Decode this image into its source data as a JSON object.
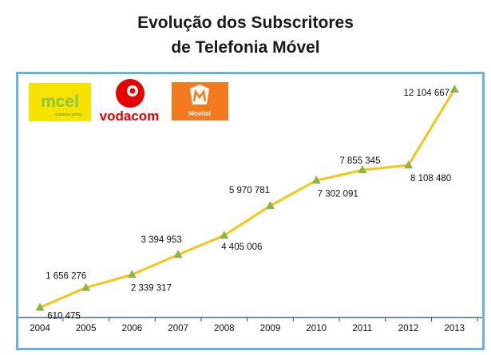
{
  "title": {
    "line1": "Evolução dos Subscritores",
    "line2": "de Telefonia Móvel"
  },
  "logos": {
    "mcel": {
      "name": "mcel",
      "tagline": "estamos juntos",
      "color": "#8dc63f",
      "bg": "#f5e300"
    },
    "vodacom": {
      "name": "vodacom",
      "color": "#e60000"
    },
    "movitel": {
      "name": "Movitel",
      "color": "#ffffff",
      "bg": "#f47a20"
    }
  },
  "colors": {
    "line": "#f5c518",
    "marker": "#8fb24a",
    "axis": "#2b4a77",
    "frame": "#6ab2df"
  },
  "chart_data": {
    "type": "line",
    "title": "Evolução dos Subscritores de Telefonia Móvel",
    "categories": [
      "2004",
      "2005",
      "2006",
      "2007",
      "2008",
      "2009",
      "2010",
      "2011",
      "2012",
      "2013"
    ],
    "values": [
      610475,
      1656276,
      2339317,
      3394953,
      4405006,
      5970781,
      7302091,
      7855345,
      8108480,
      12104667
    ],
    "labels": [
      "610 475",
      "1 656 276",
      "2 339 317",
      "3 394 953",
      "4 405 006",
      "5 970 781",
      "7 302 091",
      "7 855 345",
      "8 108 480",
      "12 104 667"
    ],
    "xlabel": "",
    "ylabel": "",
    "grid": false,
    "legend": "none"
  }
}
